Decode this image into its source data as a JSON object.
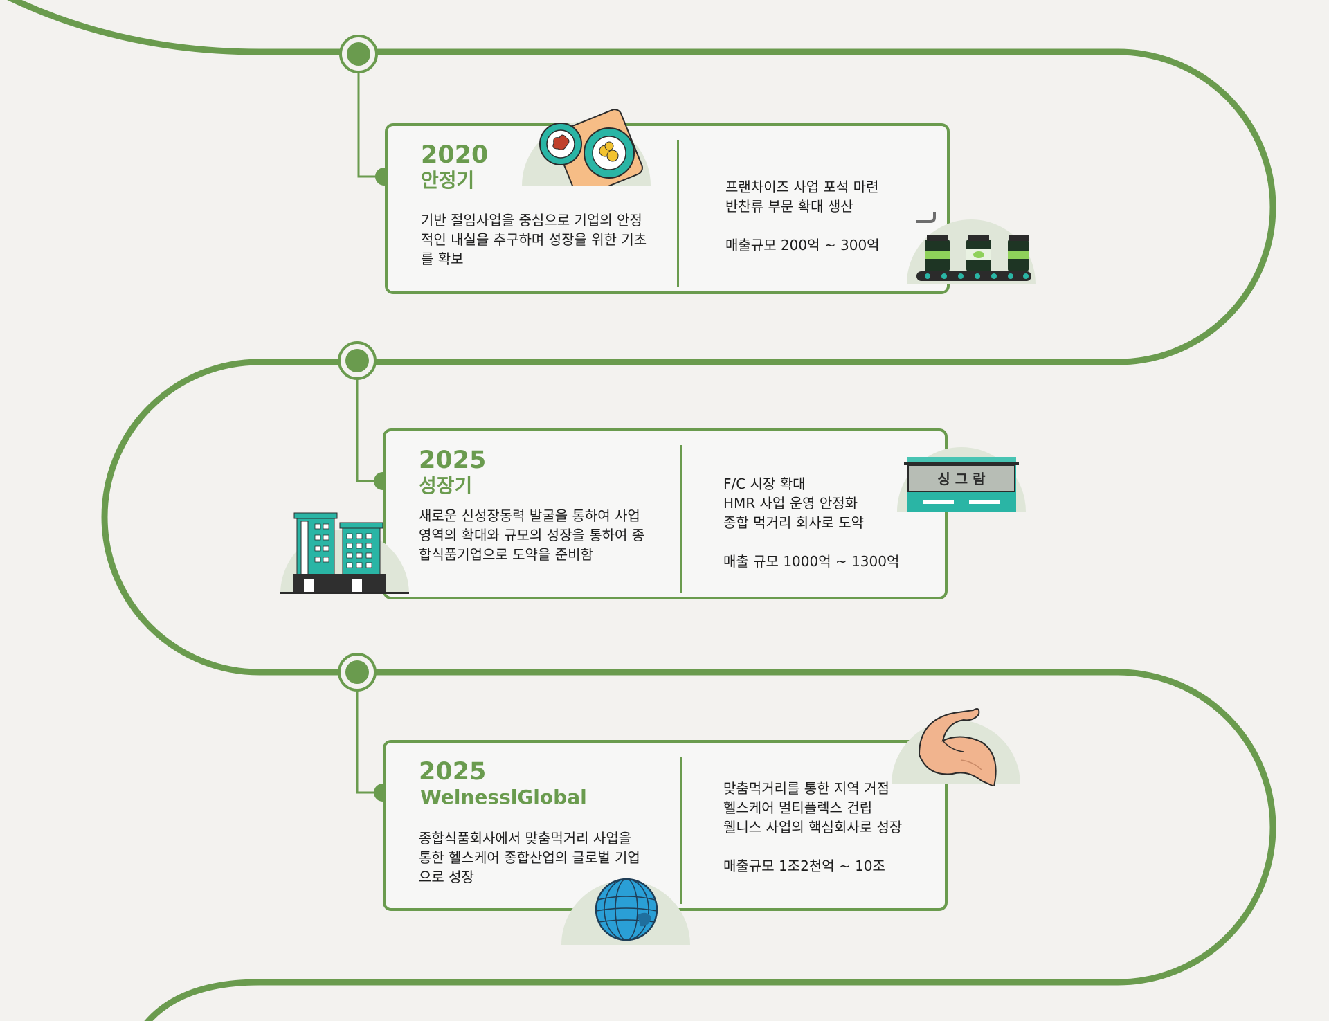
{
  "colors": {
    "accent": "#6a9b4e",
    "circle_bg": "#dfe6d8",
    "teal": "#2ab5a5",
    "background": "#f3f2ef"
  },
  "milestones": [
    {
      "year": "2020",
      "phase": "안정기",
      "description": "기반 절임사업을 중심으로 기업의 안정적인 내실을 추구하며 성장을 위한 기초를 확보",
      "details": [
        "프랜차이즈 사업 포석 마련",
        "반찬류 부문 확대 생산"
      ],
      "revenue": "매출규모 200억 ~ 300억",
      "icons": [
        "food-plates-icon",
        "conveyor-jars-icon"
      ]
    },
    {
      "year": "2025",
      "phase": "성장기",
      "description": "새로운 신성장동력 발굴을 통하여 사업영역의 확대와 규모의 성장을 통하여 종합식품기업으로 도약을 준비함",
      "details": [
        "F/C 시장 확대",
        "HMR 사업 운영 안정화",
        "종합 먹거리 회사로 도약"
      ],
      "revenue": "매출 규모 1000억 ~ 1300억",
      "icons": [
        "buildings-icon",
        "storefront-icon"
      ],
      "store_sign": "싱 그 람"
    },
    {
      "year": "2025",
      "phase": "WelnesslGlobal",
      "description": "종합식품회사에서 맞춤먹거리 사업을 통한 헬스케어 종합산업의 글로벌 기업으로 성장",
      "details": [
        "맞춤먹거리를 통한 지역 거점",
        "헬스케어 멀티플렉스 건립",
        "웰니스 사업의 핵심회사로 성장"
      ],
      "revenue": "매출규모 1조2천억 ~ 10조",
      "icons": [
        "flexed-arm-icon",
        "globe-icon"
      ]
    }
  ]
}
